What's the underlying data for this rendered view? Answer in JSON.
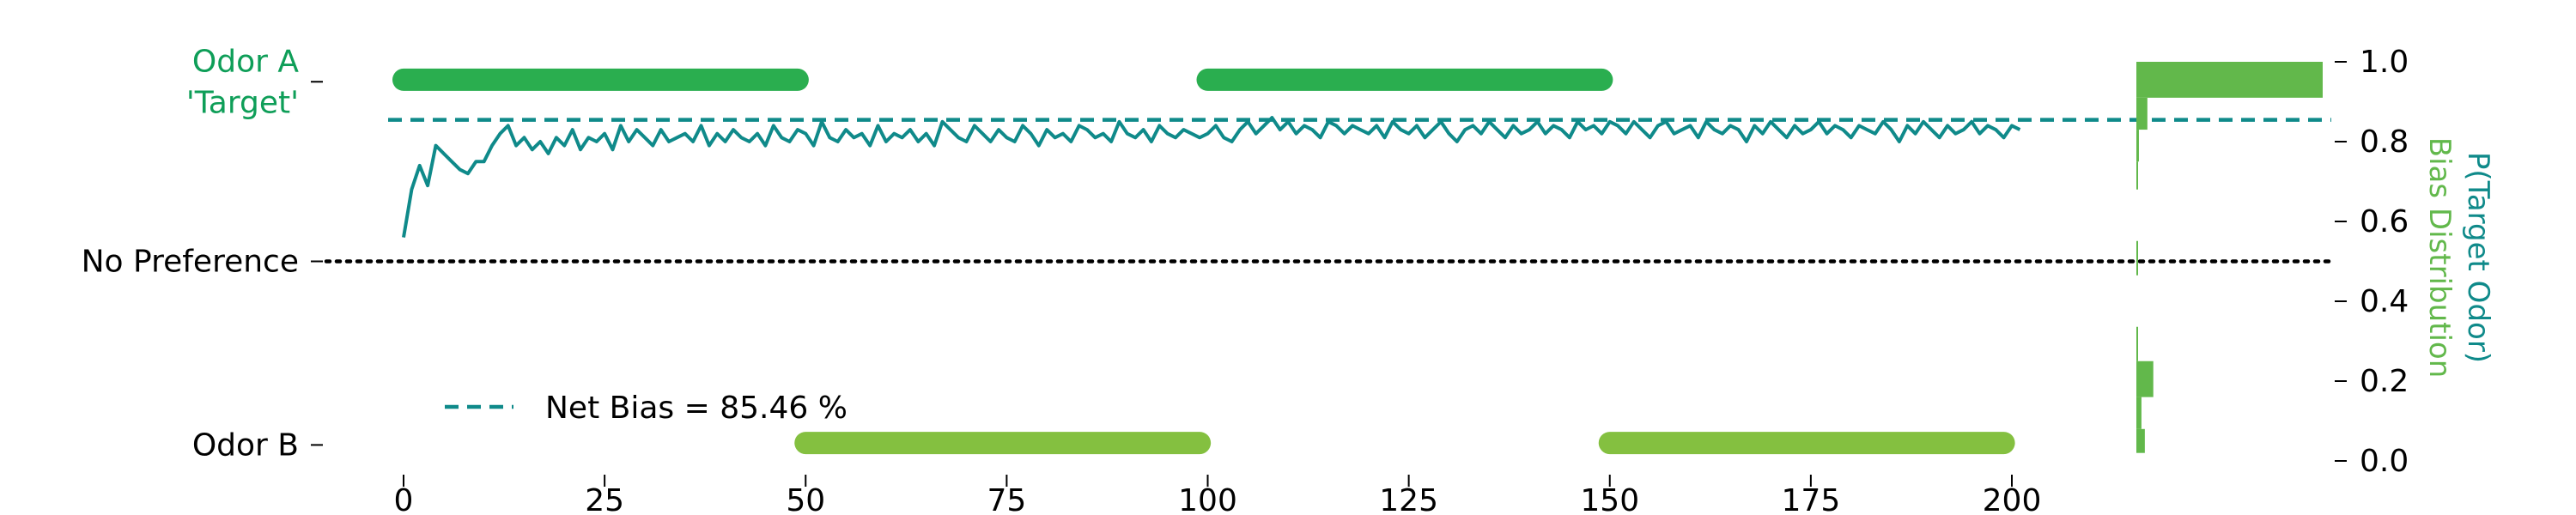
{
  "chart_data": {
    "type": "line",
    "title": "",
    "xlabel": "",
    "xlim": [
      -5,
      205
    ],
    "x_ticks": [
      0,
      25,
      50,
      75,
      100,
      125,
      150,
      175,
      200
    ],
    "y_left_labels": [
      {
        "y": 0.95,
        "lines": [
          "Odor A",
          "'Target'"
        ],
        "color": "#0e9e58"
      },
      {
        "y": 0.5,
        "lines": [
          "No Preference"
        ],
        "color": "#000000"
      },
      {
        "y": 0.04,
        "lines": [
          "Odor B"
        ],
        "color": "#000000"
      }
    ],
    "ylim": [
      0.0,
      1.0
    ],
    "y_right_ticks": [
      0.0,
      0.2,
      0.4,
      0.6,
      0.8,
      1.0
    ],
    "y_right_label_1": "P(Target Odor)",
    "y_right_label_1_color": "#0f8a8a",
    "y_right_label_2": "Bias Distribution",
    "y_right_label_2_color": "#62b84b",
    "colors": {
      "trace": "#0f8a8a",
      "odor_a_blocks": "#2aae4f",
      "odor_b_blocks": "#84c040",
      "histogram": "#62b84b",
      "no_preference_line": "#000000"
    },
    "odor_a_blocks": {
      "y": 0.955,
      "ranges": [
        [
          0,
          49
        ],
        [
          100,
          149
        ]
      ]
    },
    "odor_b_blocks": {
      "y": 0.045,
      "ranges": [
        [
          50,
          99
        ],
        [
          150,
          199
        ]
      ]
    },
    "no_preference": 0.5,
    "net_bias": 0.8546,
    "legend": {
      "placement": "lower-left",
      "label": "Net Bias = 85.46 %"
    },
    "series": [
      {
        "x_start": 0,
        "x_step": 1,
        "values": [
          0.56,
          0.68,
          0.74,
          0.69,
          0.79,
          0.77,
          0.75,
          0.73,
          0.72,
          0.75,
          0.75,
          0.79,
          0.82,
          0.84,
          0.79,
          0.81,
          0.78,
          0.8,
          0.77,
          0.81,
          0.79,
          0.83,
          0.78,
          0.81,
          0.8,
          0.82,
          0.78,
          0.84,
          0.8,
          0.83,
          0.81,
          0.79,
          0.83,
          0.8,
          0.81,
          0.82,
          0.8,
          0.84,
          0.79,
          0.82,
          0.8,
          0.83,
          0.81,
          0.8,
          0.82,
          0.79,
          0.84,
          0.81,
          0.8,
          0.83,
          0.82,
          0.79,
          0.85,
          0.81,
          0.8,
          0.83,
          0.81,
          0.82,
          0.79,
          0.84,
          0.8,
          0.82,
          0.81,
          0.83,
          0.8,
          0.82,
          0.79,
          0.85,
          0.83,
          0.81,
          0.8,
          0.84,
          0.82,
          0.8,
          0.83,
          0.81,
          0.8,
          0.84,
          0.82,
          0.79,
          0.83,
          0.81,
          0.82,
          0.8,
          0.84,
          0.83,
          0.81,
          0.82,
          0.8,
          0.85,
          0.82,
          0.81,
          0.83,
          0.8,
          0.84,
          0.82,
          0.81,
          0.83,
          0.82,
          0.81,
          0.82,
          0.84,
          0.81,
          0.8,
          0.83,
          0.85,
          0.82,
          0.84,
          0.86,
          0.83,
          0.85,
          0.82,
          0.84,
          0.83,
          0.81,
          0.85,
          0.84,
          0.82,
          0.84,
          0.83,
          0.82,
          0.84,
          0.81,
          0.85,
          0.83,
          0.82,
          0.84,
          0.81,
          0.83,
          0.85,
          0.82,
          0.8,
          0.83,
          0.84,
          0.82,
          0.85,
          0.83,
          0.81,
          0.84,
          0.82,
          0.83,
          0.85,
          0.82,
          0.84,
          0.83,
          0.81,
          0.85,
          0.83,
          0.84,
          0.82,
          0.85,
          0.84,
          0.82,
          0.85,
          0.83,
          0.81,
          0.84,
          0.85,
          0.82,
          0.83,
          0.84,
          0.81,
          0.85,
          0.83,
          0.82,
          0.84,
          0.83,
          0.8,
          0.84,
          0.82,
          0.85,
          0.83,
          0.81,
          0.84,
          0.82,
          0.83,
          0.85,
          0.82,
          0.84,
          0.83,
          0.81,
          0.84,
          0.83,
          0.82,
          0.85,
          0.83,
          0.8,
          0.84,
          0.82,
          0.85,
          0.83,
          0.81,
          0.84,
          0.82,
          0.83,
          0.85,
          0.82,
          0.84,
          0.83,
          0.81,
          0.84,
          0.83
        ]
      }
    ],
    "histogram": {
      "bins": [
        {
          "y0": 0.02,
          "y1": 0.08,
          "count": 1.0
        },
        {
          "y0": 0.08,
          "y1": 0.16,
          "count": 0.6
        },
        {
          "y0": 0.16,
          "y1": 0.25,
          "count": 2.0
        },
        {
          "y0": 0.75,
          "y1": 0.83,
          "count": 0.3
        },
        {
          "y0": 0.83,
          "y1": 0.91,
          "count": 1.3
        },
        {
          "y0": 0.91,
          "y1": 1.0,
          "count": 22.0
        }
      ],
      "xlim": [
        0,
        22
      ]
    }
  }
}
